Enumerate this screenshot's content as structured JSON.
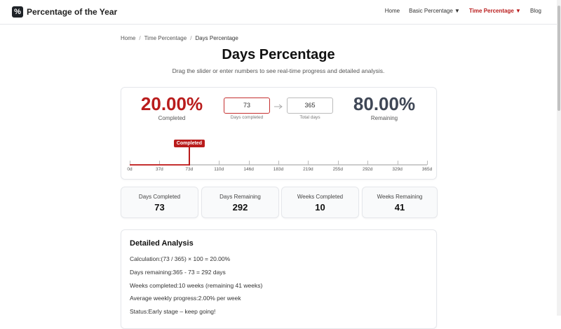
{
  "header": {
    "logo_icon": "%",
    "brand": "Percentage of the Year",
    "nav": [
      "Home",
      "Basic Percentage ▼",
      "Time Percentage ▼",
      "Blog"
    ],
    "active_nav": 2
  },
  "breadcrumb": {
    "items": [
      "Home",
      "Time Percentage",
      "Days Percentage"
    ],
    "separator": "/"
  },
  "page": {
    "title": "Days Percentage",
    "subtitle": "Drag the slider or enter numbers to see real-time progress and detailed analysis."
  },
  "progress": {
    "completed_percent": "20.00%",
    "completed_label": "Completed",
    "days_completed": "73",
    "days_completed_label": "Days completed",
    "total_days": "365",
    "total_days_label": "Total days",
    "remaining_percent": "80.00%",
    "remaining_label": "Remaining",
    "marker_label": "Completed",
    "scale": [
      "0d",
      "37d",
      "73d",
      "110d",
      "146d",
      "183d",
      "219d",
      "255d",
      "292d",
      "329d",
      "365d"
    ]
  },
  "stats": [
    {
      "label": "Days Completed",
      "value": "73"
    },
    {
      "label": "Days Remaining",
      "value": "292"
    },
    {
      "label": "Weeks Completed",
      "value": "10"
    },
    {
      "label": "Weeks Remaining",
      "value": "41"
    }
  ],
  "analysis": {
    "title": "Detailed Analysis",
    "lines": [
      {
        "label": "Calculation:",
        "value": "(73 / 365) × 100 = 20.00%"
      },
      {
        "label": "Days remaining:",
        "value": "365 - 73 = 292 days"
      },
      {
        "label": "Weeks completed:",
        "value": "10 weeks (remaining 41 weeks)"
      },
      {
        "label": "Average weekly progress:",
        "value": "2.00% per week"
      },
      {
        "label": "Status:",
        "value": "Early stage – keep going!"
      }
    ]
  }
}
